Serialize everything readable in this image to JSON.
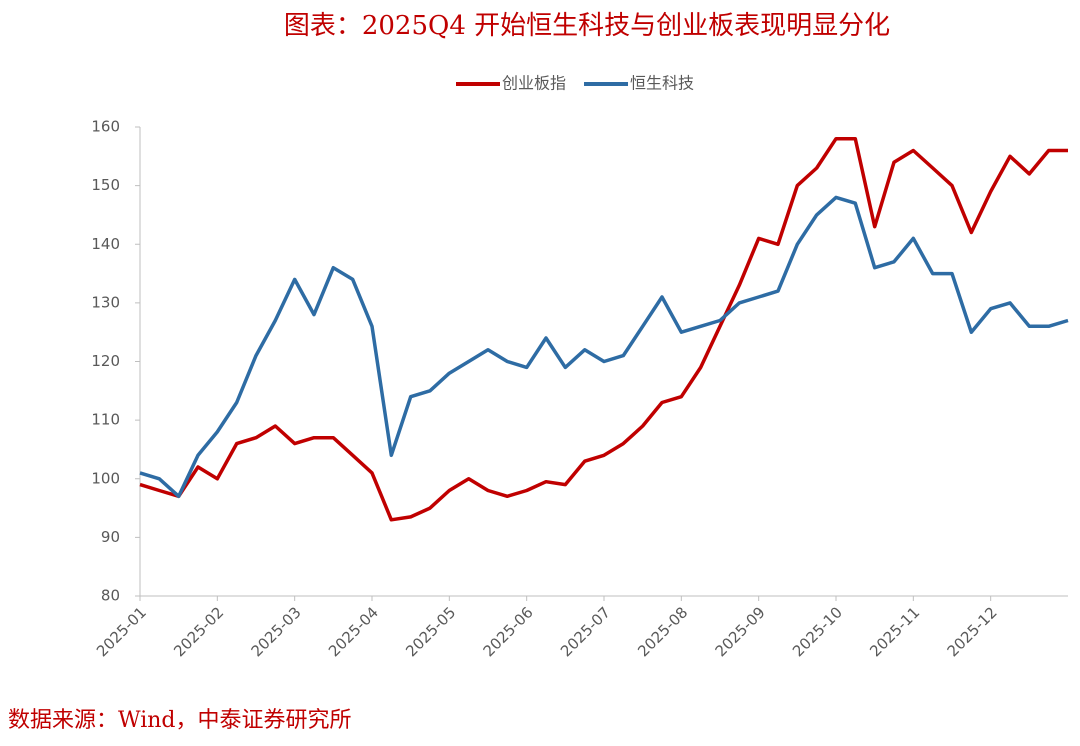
{
  "chart_data": {
    "type": "line",
    "title": "图表：2025Q4 开始恒生科技与创业板表现明显分化",
    "source": "数据来源：Wind，中泰证券研究所",
    "categories": [
      "2025-01",
      null,
      null,
      null,
      "2025-02",
      null,
      null,
      null,
      "2025-03",
      null,
      null,
      null,
      "2025-04",
      null,
      null,
      null,
      "2025-05",
      null,
      null,
      null,
      "2025-06",
      null,
      null,
      null,
      "2025-07",
      null,
      null,
      null,
      "2025-08",
      null,
      null,
      null,
      "2025-09",
      null,
      null,
      null,
      "2025-10",
      null,
      null,
      null,
      "2025-11",
      null,
      null,
      null,
      "2025-12",
      null,
      null,
      null,
      null
    ],
    "series": [
      {
        "name": "创业板指",
        "color": "#c00000",
        "values": [
          99,
          98,
          97,
          102,
          100,
          106,
          107,
          109,
          106,
          107,
          107,
          104,
          101,
          93,
          93.5,
          95,
          98,
          100,
          98,
          97,
          98,
          99.5,
          99,
          103,
          104,
          106,
          109,
          113,
          114,
          119,
          126,
          133,
          141,
          140,
          150,
          153,
          158,
          158,
          143,
          154,
          156,
          153,
          150,
          142,
          149,
          155,
          152,
          156,
          156
        ]
      },
      {
        "name": "恒生科技",
        "color": "#2e6ca4",
        "values": [
          101,
          100,
          97,
          104,
          108,
          113,
          121,
          127,
          134,
          128,
          136,
          134,
          126,
          104,
          114,
          115,
          118,
          120,
          122,
          120,
          119,
          124,
          119,
          122,
          120,
          121,
          126,
          131,
          125,
          126,
          127,
          130,
          131,
          132,
          140,
          145,
          148,
          147,
          136,
          137,
          141,
          135,
          135,
          125,
          129,
          130,
          126,
          126,
          127
        ]
      }
    ],
    "ylim": [
      80,
      160
    ],
    "yticks": [
      80,
      90,
      100,
      110,
      120,
      130,
      140,
      150,
      160
    ],
    "legend": "top"
  }
}
